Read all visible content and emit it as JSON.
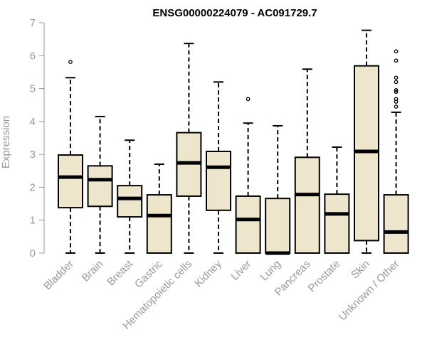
{
  "chart_data": {
    "type": "boxplot",
    "title": "ENSG00000224079 - AC091729.7",
    "ylabel": "Expression",
    "xlabel": "",
    "ylim": [
      0,
      7
    ],
    "yticks": [
      0,
      1,
      2,
      3,
      4,
      5,
      6,
      7
    ],
    "grid": false,
    "legend": "none",
    "colors": {
      "box_fill": "#EDE6CD",
      "box_stroke": "#000000",
      "median": "#000000",
      "axis": "#999999",
      "text": "#999999",
      "title": "#000000"
    },
    "categories": [
      "Bladder",
      "Brain",
      "Breast",
      "Gastric",
      "Hematopoietic cells",
      "Kidney",
      "Liver",
      "Lung",
      "Pancreas",
      "Prostate",
      "Skin",
      "Unknown / Other"
    ],
    "boxes": [
      {
        "category": "Bladder",
        "min": 0,
        "q1": 1.38,
        "median": 2.31,
        "q3": 2.98,
        "max": 5.33,
        "outliers": [
          5.81
        ]
      },
      {
        "category": "Brain",
        "min": 0,
        "q1": 1.42,
        "median": 2.23,
        "q3": 2.65,
        "max": 4.15,
        "outliers": []
      },
      {
        "category": "Breast",
        "min": 0,
        "q1": 1.1,
        "median": 1.66,
        "q3": 2.05,
        "max": 3.43,
        "outliers": []
      },
      {
        "category": "Gastric",
        "min": 0,
        "q1": 0,
        "median": 1.14,
        "q3": 1.77,
        "max": 2.7,
        "outliers": []
      },
      {
        "category": "Hematopoietic cells",
        "min": 0,
        "q1": 1.73,
        "median": 2.74,
        "q3": 3.66,
        "max": 6.37,
        "outliers": []
      },
      {
        "category": "Kidney",
        "min": 0,
        "q1": 1.3,
        "median": 2.61,
        "q3": 3.09,
        "max": 5.2,
        "outliers": []
      },
      {
        "category": "Liver",
        "min": 0,
        "q1": 0,
        "median": 1.02,
        "q3": 1.73,
        "max": 3.95,
        "outliers": [
          4.68
        ]
      },
      {
        "category": "Lung",
        "min": 0,
        "q1": 0,
        "median": 0,
        "q3": 1.66,
        "max": 3.87,
        "outliers": []
      },
      {
        "category": "Pancreas",
        "min": 0,
        "q1": 0,
        "median": 1.78,
        "q3": 2.91,
        "max": 5.59,
        "outliers": []
      },
      {
        "category": "Prostate",
        "min": 0,
        "q1": 0,
        "median": 1.19,
        "q3": 1.79,
        "max": 3.22,
        "outliers": []
      },
      {
        "category": "Skin",
        "min": 0,
        "q1": 0.38,
        "median": 3.09,
        "q3": 5.69,
        "max": 6.77,
        "outliers": []
      },
      {
        "category": "Unknown / Other",
        "min": 0,
        "q1": 0,
        "median": 0.64,
        "q3": 1.77,
        "max": 4.28,
        "outliers": [
          4.45,
          4.6,
          4.68,
          4.9,
          4.95,
          5.2,
          5.33,
          5.85,
          6.13
        ]
      }
    ]
  }
}
